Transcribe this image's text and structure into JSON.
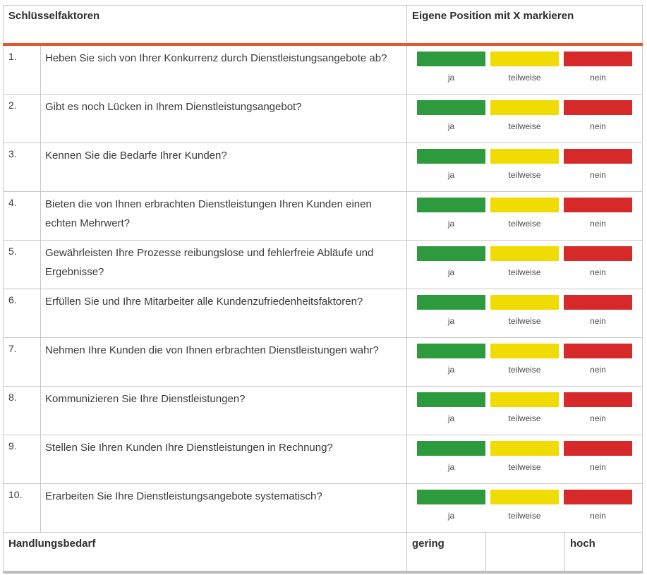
{
  "header": {
    "col_factors": "Schlüsselfaktoren",
    "col_position": "Eigene Position mit X markieren"
  },
  "options": {
    "yes": "ja",
    "partial": "teilweise",
    "no": "nein"
  },
  "colors": {
    "yes": "#2e9a3e",
    "partial": "#f0dc00",
    "no": "#d62a2a",
    "accent_rule": "#e2592b"
  },
  "rows": [
    {
      "num": "1.",
      "question": "Heben Sie sich von Ihrer Konkurrenz durch Dienstleistungsangebote ab?"
    },
    {
      "num": "2.",
      "question": "Gibt es noch Lücken in Ihrem Dienstleistungsangebot?"
    },
    {
      "num": "3.",
      "question": "Kennen Sie die Bedarfe Ihrer Kunden?"
    },
    {
      "num": "4.",
      "question": "Bieten die von Ihnen erbrachten Dienstleistungen Ihren Kunden einen echten Mehrwert?"
    },
    {
      "num": "5.",
      "question": "Gewährleisten Ihre Prozesse reibungslose und fehlerfreie Abläufe und Ergebnisse?"
    },
    {
      "num": "6.",
      "question": "Erfüllen Sie und Ihre Mitarbeiter alle Kundenzufriedenheitsfaktoren?"
    },
    {
      "num": "7.",
      "question": "Nehmen Ihre Kunden die von Ihnen erbrachten Dienstleistungen wahr?"
    },
    {
      "num": "8.",
      "question": "Kommunizieren Sie Ihre Dienstleistungen?"
    },
    {
      "num": "9.",
      "question": "Stellen Sie Ihren Kunden Ihre Dienstleistungen in Rechnung?"
    },
    {
      "num": "10.",
      "question": "Erarbeiten Sie Ihre Dienstleistungsangebote systematisch?"
    }
  ],
  "footer": {
    "label": "Handlungsbedarf",
    "low": "gering",
    "middle": "",
    "high": "hoch"
  }
}
